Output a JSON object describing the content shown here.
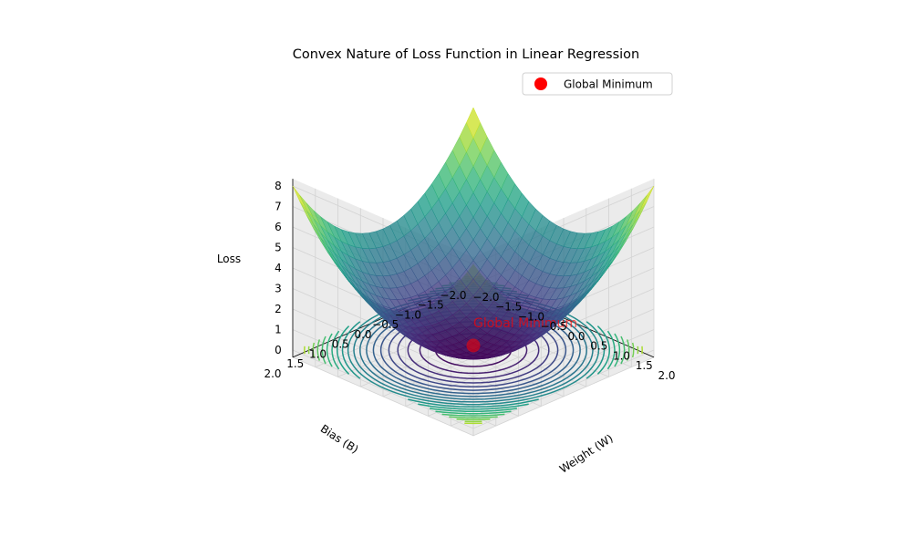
{
  "chart_data": {
    "type": "surface3d",
    "title": "Convex Nature of Loss Function in Linear Regression",
    "xlabel": "Weight (W)",
    "ylabel": "Bias (B)",
    "zlabel": "Loss",
    "xlim": [
      -2,
      2
    ],
    "ylim": [
      -2,
      2
    ],
    "zlim": [
      0,
      8
    ],
    "x_ticks": [
      -2.0,
      -1.5,
      -1.0,
      -0.5,
      0.0,
      0.5,
      1.0,
      1.5,
      2.0
    ],
    "y_ticks": [
      -2.0,
      -1.5,
      -1.0,
      -0.5,
      0.0,
      0.5,
      1.0,
      1.5,
      2.0
    ],
    "z_ticks": [
      0,
      1,
      2,
      3,
      4,
      5,
      6,
      7,
      8
    ],
    "x_tick_labels": [
      "−2.0",
      "−1.5",
      "−1.0",
      "−0.5",
      "0.0",
      "0.5",
      "1.0",
      "1.5",
      "2.0"
    ],
    "y_tick_labels": [
      "−2.0",
      "−1.5",
      "−1.0",
      "−0.5",
      "0.0",
      "0.5",
      "1.0",
      "1.5",
      "2.0"
    ],
    "z_tick_labels": [
      "0",
      "1",
      "2",
      "3",
      "4",
      "5",
      "6",
      "7",
      "8"
    ],
    "surface": {
      "function": "W^2 + B^2",
      "colormap": "viridis"
    },
    "contour": {
      "offset_z": 0,
      "colormap": "viridis"
    },
    "global_minimum": {
      "W": 0,
      "B": 0,
      "loss": 0,
      "label": "Global Minimum",
      "color": "#ff0000"
    },
    "legend": {
      "placement": "top-right",
      "entries": [
        {
          "label": "Global Minimum",
          "color": "#ff0000",
          "marker": "circle"
        }
      ]
    },
    "grid": true
  }
}
